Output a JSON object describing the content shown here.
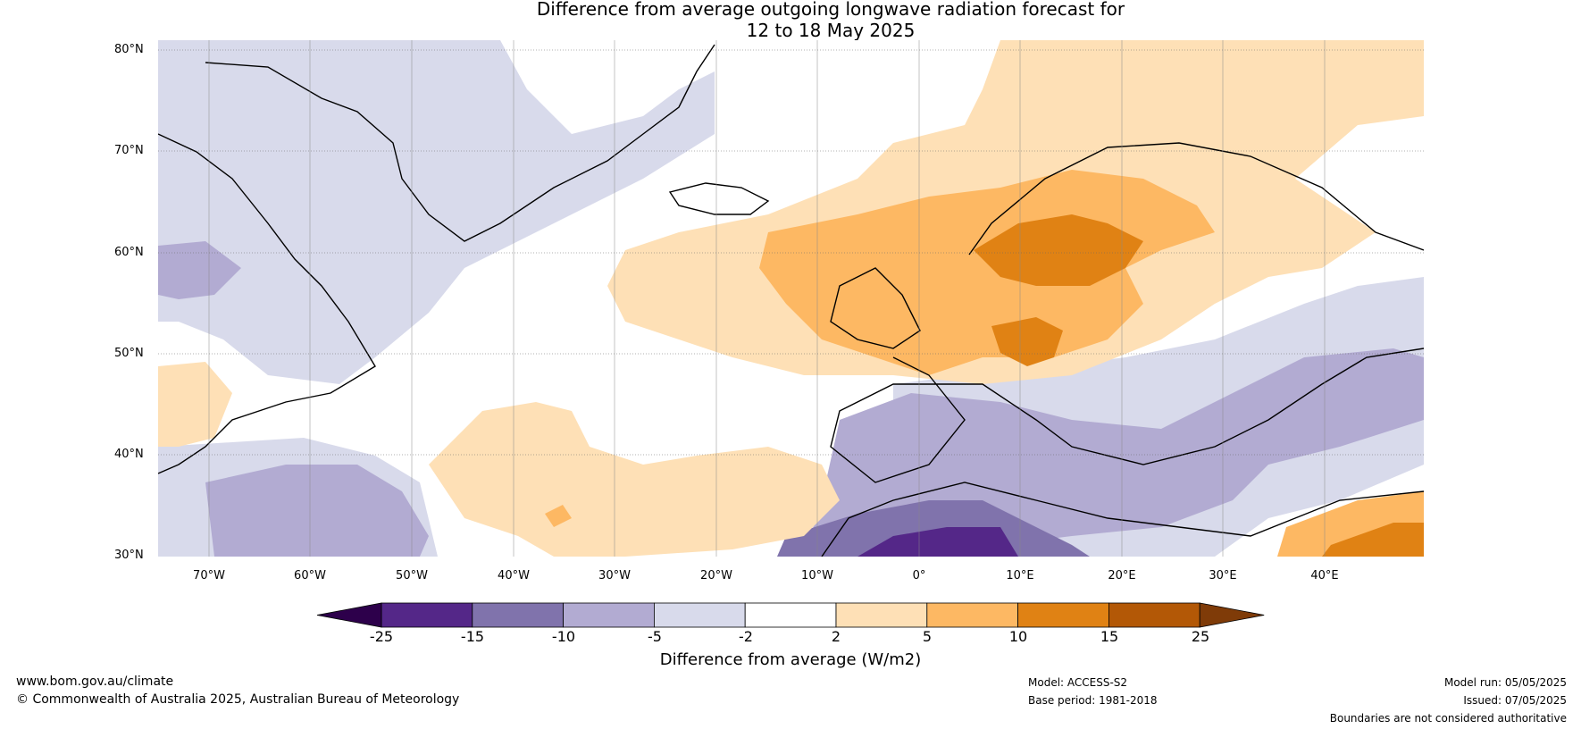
{
  "title_line1": "Difference from average outgoing longwave radiation forecast for",
  "title_line2": "12 to 18 May 2025",
  "map": {
    "lat_labels": [
      "80°N",
      "70°N",
      "60°N",
      "50°N",
      "40°N",
      "30°N"
    ],
    "lon_labels": [
      "70°W",
      "60°W",
      "50°W",
      "40°W",
      "30°W",
      "20°W",
      "10°W",
      "0°",
      "10°E",
      "20°E",
      "30°E",
      "40°E"
    ]
  },
  "legend": {
    "label": "Difference from average (W/m2)",
    "ticks": [
      "-25",
      "-15",
      "-10",
      "-5",
      "-2",
      "2",
      "5",
      "10",
      "15",
      "25"
    ],
    "colors": {
      "below_min": "#2d004b",
      "c1": "#542788",
      "c2": "#8073ac",
      "c3": "#b2abd2",
      "c4": "#d8daeb",
      "c5": "#ffffff",
      "c6": "#fee0b6",
      "c7": "#fdb863",
      "c8": "#e08214",
      "c9": "#b35806",
      "above_max": "#7f3b08"
    }
  },
  "footer": {
    "website": "www.bom.gov.au/climate",
    "copyright": "© Commonwealth of Australia 2025, Australian Bureau of Meteorology",
    "model": "Model: ACCESS-S2",
    "base_period": "Base period: 1981-2018",
    "model_run": "Model run: 05/05/2025",
    "issued": "Issued: 07/05/2025",
    "disclaimer": "Boundaries are not considered authoritative"
  }
}
